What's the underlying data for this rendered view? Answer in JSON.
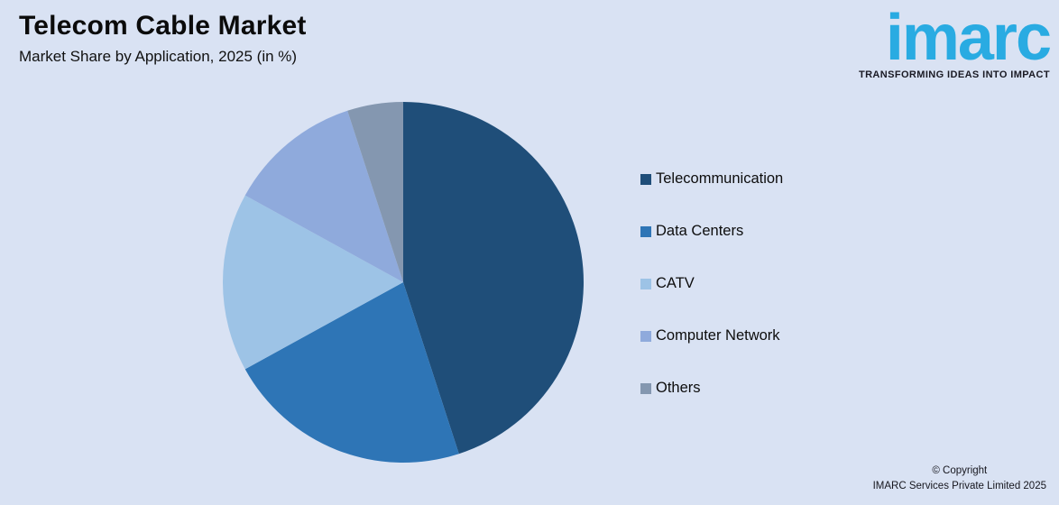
{
  "header": {
    "title": "Telecom Cable Market",
    "subtitle": "Market Share by Application, 2025 (in %)"
  },
  "logo": {
    "name": "imarc",
    "tagline": "TRANSFORMING IDEAS INTO IMPACT",
    "brand_color": "#29abe2"
  },
  "footer": {
    "line1": "© Copyright",
    "line2": "IMARC Services Private Limited 2025"
  },
  "colors": {
    "background": "#d9e2f3",
    "title_text": "#0b0b0b"
  },
  "chart_data": {
    "type": "pie",
    "title": "Telecom Cable Market",
    "subtitle": "Market Share by Application, 2025 (in %)",
    "unit": "%",
    "legend_position": "right",
    "start_angle_deg": 0,
    "direction": "clockwise",
    "values_labeled_on_chart": false,
    "values_are_estimated_from_angles": true,
    "slices": [
      {
        "label": "Telecommunication",
        "value": 45,
        "color": "#1f4e79"
      },
      {
        "label": "Data Centers",
        "value": 22,
        "color": "#2e75b6"
      },
      {
        "label": "CATV",
        "value": 16,
        "color": "#9dc3e6"
      },
      {
        "label": "Computer Network",
        "value": 12,
        "color": "#8faadc"
      },
      {
        "label": "Others",
        "value": 5,
        "color": "#8497b0"
      }
    ]
  }
}
